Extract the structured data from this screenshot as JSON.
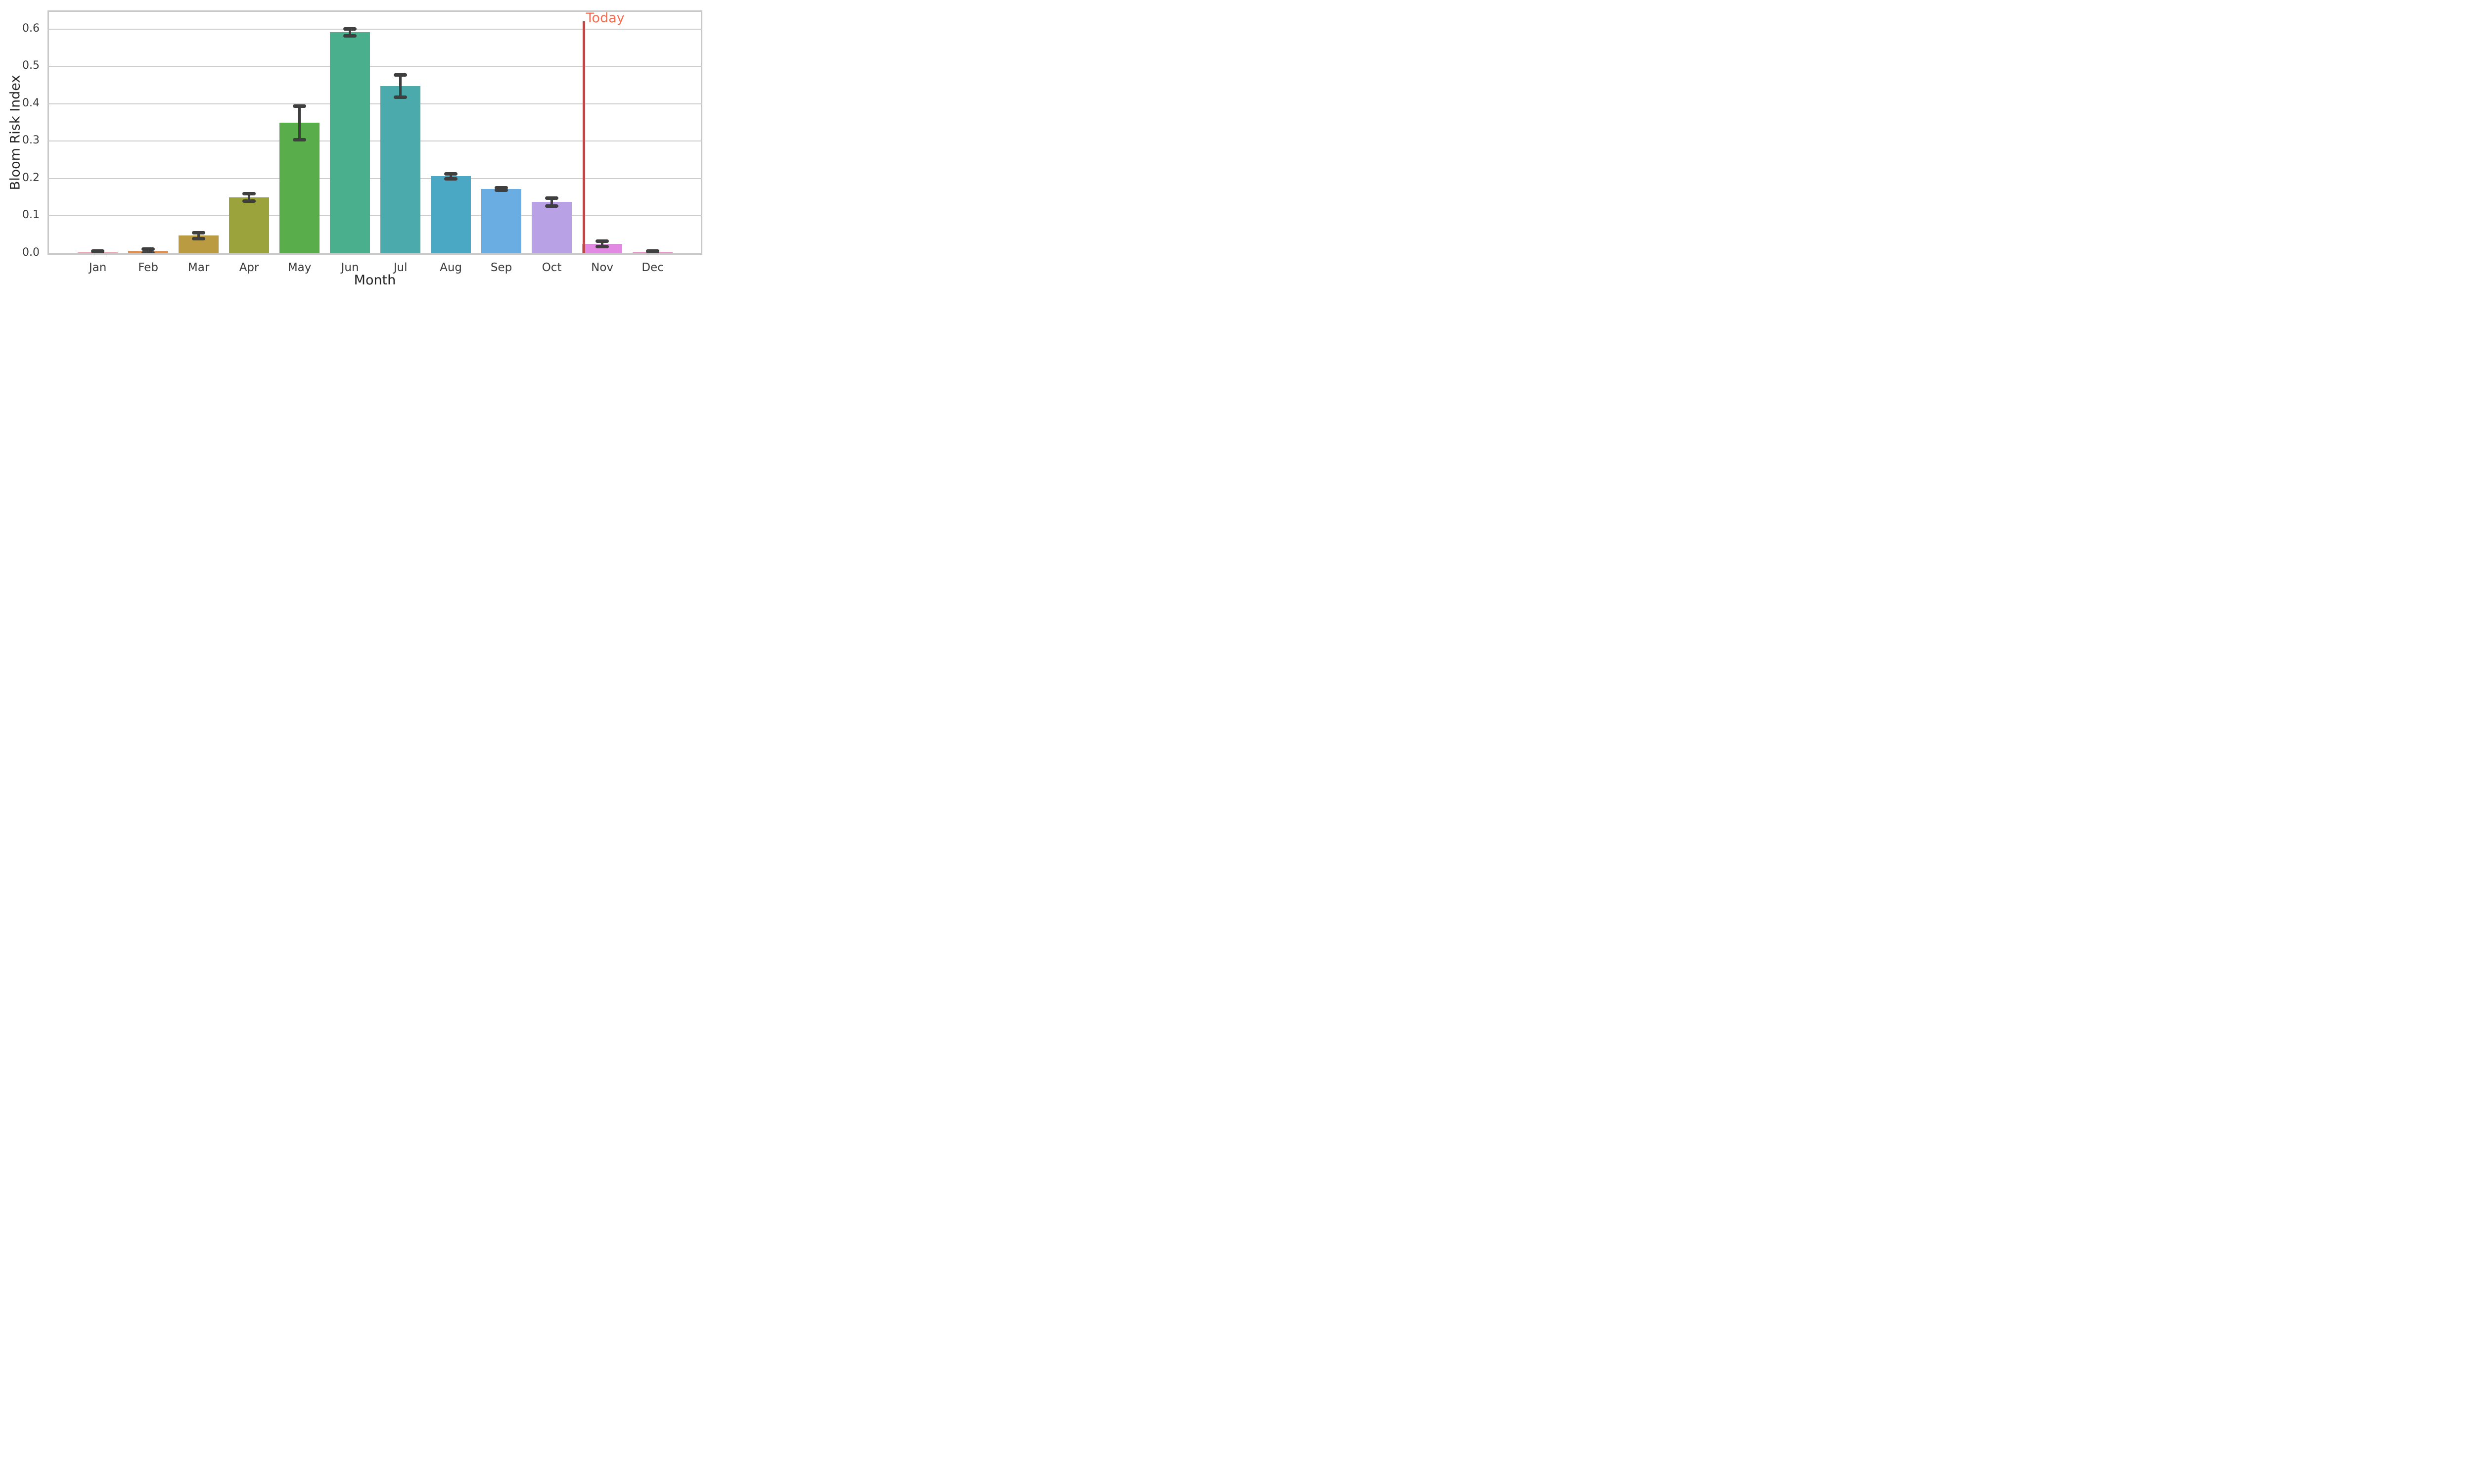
{
  "chart_data": {
    "type": "bar",
    "title": "",
    "xlabel": "Month",
    "ylabel": "Bloom Risk Index",
    "categories": [
      "Jan",
      "Feb",
      "Mar",
      "Apr",
      "May",
      "Jun",
      "Jul",
      "Aug",
      "Sep",
      "Oct",
      "Nov",
      "Dec"
    ],
    "values": [
      0.003,
      0.006,
      0.047,
      0.149,
      0.349,
      0.591,
      0.447,
      0.206,
      0.172,
      0.137,
      0.025,
      0.003
    ],
    "errors": [
      0.003,
      0.005,
      0.008,
      0.01,
      0.045,
      0.009,
      0.03,
      0.007,
      0.003,
      0.011,
      0.007,
      0.003
    ],
    "bar_colors": [
      "#f1a0b2",
      "#e2914e",
      "#ba9b41",
      "#9aa33c",
      "#5aad4b",
      "#49af8d",
      "#4babac",
      "#4aa8c4",
      "#6aade2",
      "#b9a1e6",
      "#e28ae3",
      "#ee8cc8"
    ],
    "ylim": [
      0.0,
      0.65
    ],
    "ytick_labels": [
      "0.0",
      "0.1",
      "0.2",
      "0.3",
      "0.4",
      "0.5",
      "0.6"
    ],
    "grid": true,
    "grid_axis": "y",
    "legend": "none",
    "annotations": [
      {
        "type": "vline",
        "x": 9.65,
        "label": "Today",
        "line_color": "#b94a4b",
        "label_color": "#f96b4e"
      }
    ],
    "error_bar_color": "#3f3f3f",
    "spine_color": "#c8c8c8",
    "grid_color": "#cdcdcd",
    "tick_label_color": "#3a3a3a",
    "axis_label_color": "#262626"
  },
  "labels": {
    "xlabel": "Month",
    "ylabel": "Bloom Risk Index",
    "today": "Today"
  }
}
